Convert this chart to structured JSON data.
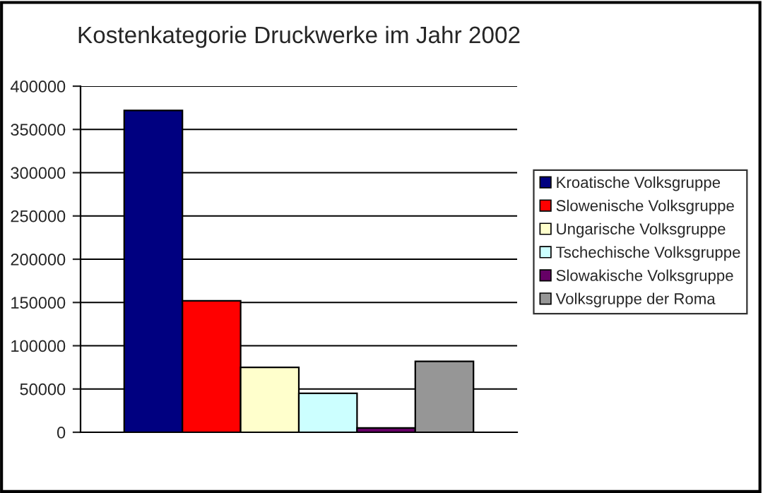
{
  "chart_data": {
    "type": "bar",
    "title": "Kostenkategorie Druckwerke im Jahr 2002",
    "categories": [
      null
    ],
    "series": [
      {
        "name": "Kroatische Volksgruppe",
        "color": "#000080",
        "values": [
          372000
        ]
      },
      {
        "name": "Slowenische Volksgruppe",
        "color": "#ff0000",
        "values": [
          152000
        ]
      },
      {
        "name": "Ungarische Volksgruppe",
        "color": "#ffffcc",
        "values": [
          75000
        ]
      },
      {
        "name": "Tschechische Volksgruppe",
        "color": "#ccffff",
        "values": [
          45000
        ]
      },
      {
        "name": "Slowakische Volksgruppe",
        "color": "#660066",
        "values": [
          5000
        ]
      },
      {
        "name": "Volksgruppe der Roma",
        "color": "#969696",
        "values": [
          82000
        ]
      }
    ],
    "ylim": [
      0,
      400000
    ],
    "yticks": [
      0,
      50000,
      100000,
      150000,
      200000,
      250000,
      300000,
      350000,
      400000
    ],
    "grid": "y",
    "legend": "right"
  }
}
